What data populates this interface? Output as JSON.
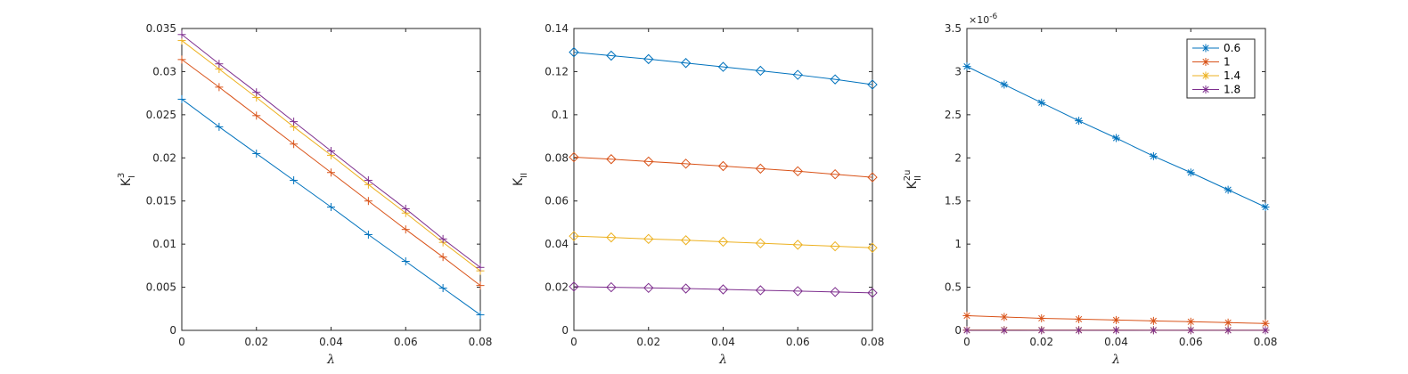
{
  "figure": {
    "background": "#ffffff"
  },
  "chart_data": [
    {
      "type": "line",
      "xlabel": "λ",
      "ylabel": {
        "base": "K",
        "sub": "I",
        "sup": "3"
      },
      "xlim": [
        0,
        0.08
      ],
      "ylim": [
        0,
        0.035
      ],
      "xticks": [
        0,
        0.02,
        0.04,
        0.06,
        0.08
      ],
      "xtick_labels": [
        "0",
        "0.02",
        "0.04",
        "0.06",
        "0.08"
      ],
      "yticks": [
        0,
        0.005,
        0.01,
        0.015,
        0.02,
        0.025,
        0.03,
        0.035
      ],
      "ytick_labels": [
        "0",
        "0.005",
        "0.01",
        "0.015",
        "0.02",
        "0.025",
        "0.03",
        "0.035"
      ],
      "marker": "plus",
      "x": [
        0,
        0.01,
        0.02,
        0.03,
        0.04,
        0.05,
        0.06,
        0.07,
        0.08
      ],
      "series": [
        {
          "color": "#0072BD",
          "values": [
            0.0268,
            0.0236,
            0.0205,
            0.0174,
            0.0143,
            0.0111,
            0.008,
            0.0049,
            0.0018
          ]
        },
        {
          "color": "#D95319",
          "values": [
            0.0314,
            0.0282,
            0.0249,
            0.0216,
            0.0183,
            0.015,
            0.0117,
            0.0085,
            0.0052
          ]
        },
        {
          "color": "#EDB120",
          "values": [
            0.0336,
            0.0303,
            0.027,
            0.0236,
            0.0203,
            0.0169,
            0.0136,
            0.0102,
            0.0069
          ]
        },
        {
          "color": "#7E2F8E",
          "values": [
            0.0343,
            0.0309,
            0.0276,
            0.0242,
            0.0208,
            0.0174,
            0.0141,
            0.0106,
            0.0073
          ]
        }
      ]
    },
    {
      "type": "line",
      "xlabel": "λ",
      "ylabel": {
        "base": "K",
        "sub": "II",
        "sup": ""
      },
      "xlim": [
        0,
        0.08
      ],
      "ylim": [
        0,
        0.14
      ],
      "xticks": [
        0,
        0.02,
        0.04,
        0.06,
        0.08
      ],
      "xtick_labels": [
        "0",
        "0.02",
        "0.04",
        "0.06",
        "0.08"
      ],
      "yticks": [
        0,
        0.02,
        0.04,
        0.06,
        0.08,
        0.1,
        0.12,
        0.14
      ],
      "ytick_labels": [
        "0",
        "0.02",
        "0.04",
        "0.06",
        "0.08",
        "0.1",
        "0.12",
        "0.14"
      ],
      "marker": "diamond",
      "x": [
        0,
        0.01,
        0.02,
        0.03,
        0.04,
        0.05,
        0.06,
        0.07,
        0.08
      ],
      "series": [
        {
          "color": "#0072BD",
          "values": [
            0.129,
            0.1274,
            0.1258,
            0.124,
            0.1222,
            0.1204,
            0.1185,
            0.1164,
            0.114
          ]
        },
        {
          "color": "#D95319",
          "values": [
            0.0803,
            0.0794,
            0.0783,
            0.0773,
            0.0762,
            0.075,
            0.0738,
            0.0724,
            0.071
          ]
        },
        {
          "color": "#EDB120",
          "values": [
            0.0437,
            0.0431,
            0.0424,
            0.0418,
            0.0411,
            0.0404,
            0.0397,
            0.039,
            0.0383
          ]
        },
        {
          "color": "#7E2F8E",
          "values": [
            0.0203,
            0.02,
            0.0197,
            0.0194,
            0.019,
            0.0186,
            0.0182,
            0.0178,
            0.0174
          ]
        }
      ]
    },
    {
      "type": "line",
      "xlabel": "λ",
      "ylabel": {
        "base": "K",
        "sub": "II",
        "sup": "2u"
      },
      "exponent_label": {
        "base": "×10",
        "sup": "-6"
      },
      "xlim": [
        0,
        0.08
      ],
      "ylim": [
        0,
        3.5
      ],
      "xticks": [
        0,
        0.02,
        0.04,
        0.06,
        0.08
      ],
      "xtick_labels": [
        "0",
        "0.02",
        "0.04",
        "0.06",
        "0.08"
      ],
      "yticks": [
        0,
        0.5,
        1,
        1.5,
        2,
        2.5,
        3,
        3.5
      ],
      "ytick_labels": [
        "0",
        "0.5",
        "1",
        "1.5",
        "2",
        "2.5",
        "3",
        "3.5"
      ],
      "marker": "asterisk",
      "x": [
        0,
        0.01,
        0.02,
        0.03,
        0.04,
        0.05,
        0.06,
        0.07,
        0.08
      ],
      "legend_position": "top-right",
      "series": [
        {
          "name": "0.6",
          "color": "#0072BD",
          "values": [
            3.06,
            2.85,
            2.64,
            2.43,
            2.23,
            2.02,
            1.83,
            1.63,
            1.43
          ]
        },
        {
          "name": "1",
          "color": "#D95319",
          "values": [
            0.17,
            0.155,
            0.14,
            0.13,
            0.12,
            0.11,
            0.1,
            0.09,
            0.08
          ]
        },
        {
          "name": "1.4",
          "color": "#EDB120",
          "values": [
            0.005,
            0.005,
            0.004,
            0.004,
            0.004,
            0.003,
            0.003,
            0.003,
            0.002
          ]
        },
        {
          "name": "1.8",
          "color": "#7E2F8E",
          "values": [
            0.001,
            0.001,
            0.001,
            0.001,
            0.001,
            0.001,
            0.001,
            0.001,
            0.001
          ]
        }
      ]
    }
  ]
}
